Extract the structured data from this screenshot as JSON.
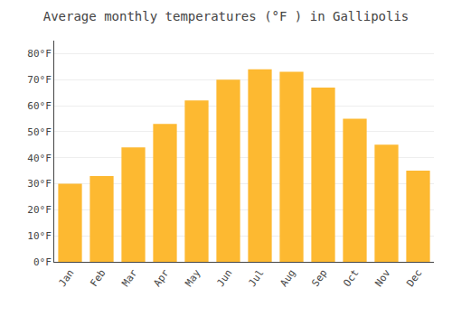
{
  "chart_data": {
    "type": "bar",
    "title": "Average monthly temperatures (°F ) in Gallipolis",
    "categories": [
      "Jan",
      "Feb",
      "Mar",
      "Apr",
      "May",
      "Jun",
      "Jul",
      "Aug",
      "Sep",
      "Oct",
      "Nov",
      "Dec"
    ],
    "values": [
      30,
      33,
      44,
      53,
      62,
      70,
      74,
      73,
      67,
      55,
      45,
      35
    ],
    "color": "#FDB931",
    "ylim": [
      0,
      85
    ],
    "yticks": [
      {
        "value": 0,
        "label": "0°F"
      },
      {
        "value": 10,
        "label": "10°F"
      },
      {
        "value": 20,
        "label": "20°F"
      },
      {
        "value": 30,
        "label": "30°F"
      },
      {
        "value": 40,
        "label": "40°F"
      },
      {
        "value": 50,
        "label": "50°F"
      },
      {
        "value": 60,
        "label": "60°F"
      },
      {
        "value": 70,
        "label": "70°F"
      },
      {
        "value": 80,
        "label": "80°F"
      }
    ],
    "grid": true
  }
}
